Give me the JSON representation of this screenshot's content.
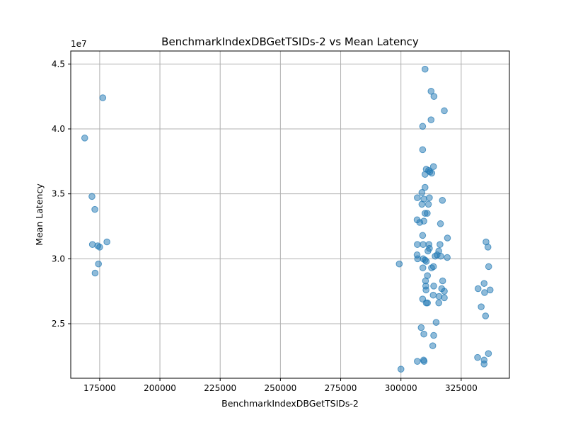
{
  "chart_data": {
    "type": "scatter",
    "title": "BenchmarkIndexDBGetTSIDs-2 vs Mean Latency",
    "xlabel": "BenchmarkIndexDBGetTSIDs-2",
    "ylabel": "Mean Latency",
    "y_scale_label": "1e7",
    "xlim": [
      163000,
      345000
    ],
    "ylim": [
      20800000,
      46000000
    ],
    "grid": true,
    "x_ticks": [
      175000,
      200000,
      225000,
      250000,
      275000,
      300000,
      325000
    ],
    "x_tick_labels": [
      "175000",
      "200000",
      "225000",
      "250000",
      "275000",
      "300000",
      "325000"
    ],
    "y_ticks": [
      25000000,
      30000000,
      35000000,
      40000000,
      45000000
    ],
    "y_tick_labels": [
      "2.5",
      "3.0",
      "3.5",
      "4.0",
      "4.5"
    ],
    "color": "#1f77b4",
    "points": [
      [
        168800,
        39300000
      ],
      [
        176300,
        42400000
      ],
      [
        171800,
        34800000
      ],
      [
        173000,
        33800000
      ],
      [
        172000,
        31100000
      ],
      [
        174200,
        31000000
      ],
      [
        175000,
        30900000
      ],
      [
        178000,
        31300000
      ],
      [
        174500,
        29600000
      ],
      [
        173100,
        28900000
      ],
      [
        310000,
        44600000
      ],
      [
        312500,
        42900000
      ],
      [
        313700,
        42500000
      ],
      [
        318000,
        41400000
      ],
      [
        312500,
        40700000
      ],
      [
        309000,
        40200000
      ],
      [
        309000,
        38400000
      ],
      [
        313500,
        37100000
      ],
      [
        310500,
        36900000
      ],
      [
        311500,
        36800000
      ],
      [
        312000,
        36700000
      ],
      [
        312800,
        36600000
      ],
      [
        310000,
        36500000
      ],
      [
        310000,
        35500000
      ],
      [
        308700,
        35100000
      ],
      [
        306800,
        34700000
      ],
      [
        309500,
        34600000
      ],
      [
        311800,
        34700000
      ],
      [
        317200,
        34500000
      ],
      [
        308700,
        34200000
      ],
      [
        311400,
        34200000
      ],
      [
        310000,
        33500000
      ],
      [
        310900,
        33500000
      ],
      [
        306700,
        33000000
      ],
      [
        309500,
        32900000
      ],
      [
        307800,
        32800000
      ],
      [
        316400,
        32700000
      ],
      [
        309000,
        31800000
      ],
      [
        319300,
        31600000
      ],
      [
        306800,
        31100000
      ],
      [
        309200,
        31100000
      ],
      [
        311600,
        31100000
      ],
      [
        316200,
        31100000
      ],
      [
        311800,
        30800000
      ],
      [
        311200,
        30600000
      ],
      [
        315700,
        30600000
      ],
      [
        306700,
        30300000
      ],
      [
        314200,
        30200000
      ],
      [
        316500,
        30200000
      ],
      [
        306900,
        30000000
      ],
      [
        309200,
        30000000
      ],
      [
        310000,
        29900000
      ],
      [
        310500,
        29800000
      ],
      [
        319200,
        30100000
      ],
      [
        315000,
        30300000
      ],
      [
        309100,
        29300000
      ],
      [
        312700,
        29300000
      ],
      [
        313500,
        29400000
      ],
      [
        311000,
        28700000
      ],
      [
        310200,
        28300000
      ],
      [
        317300,
        28300000
      ],
      [
        313600,
        27900000
      ],
      [
        310300,
        27900000
      ],
      [
        316900,
        27700000
      ],
      [
        310400,
        27600000
      ],
      [
        318000,
        27500000
      ],
      [
        313400,
        27200000
      ],
      [
        315800,
        27100000
      ],
      [
        309000,
        26900000
      ],
      [
        318000,
        27000000
      ],
      [
        310500,
        26600000
      ],
      [
        311000,
        26600000
      ],
      [
        315700,
        26600000
      ],
      [
        314600,
        25100000
      ],
      [
        308400,
        24700000
      ],
      [
        309500,
        24200000
      ],
      [
        313600,
        24100000
      ],
      [
        313200,
        23300000
      ],
      [
        309400,
        22200000
      ],
      [
        309600,
        22100000
      ],
      [
        306800,
        22100000
      ],
      [
        300000,
        21500000
      ],
      [
        299300,
        29600000
      ],
      [
        335300,
        31300000
      ],
      [
        336100,
        30900000
      ],
      [
        336400,
        29400000
      ],
      [
        334500,
        28100000
      ],
      [
        332000,
        27700000
      ],
      [
        334700,
        27400000
      ],
      [
        337000,
        27600000
      ],
      [
        333300,
        26300000
      ],
      [
        335100,
        25600000
      ],
      [
        336300,
        22700000
      ],
      [
        331800,
        22400000
      ],
      [
        334500,
        22200000
      ],
      [
        334500,
        21900000
      ]
    ]
  }
}
